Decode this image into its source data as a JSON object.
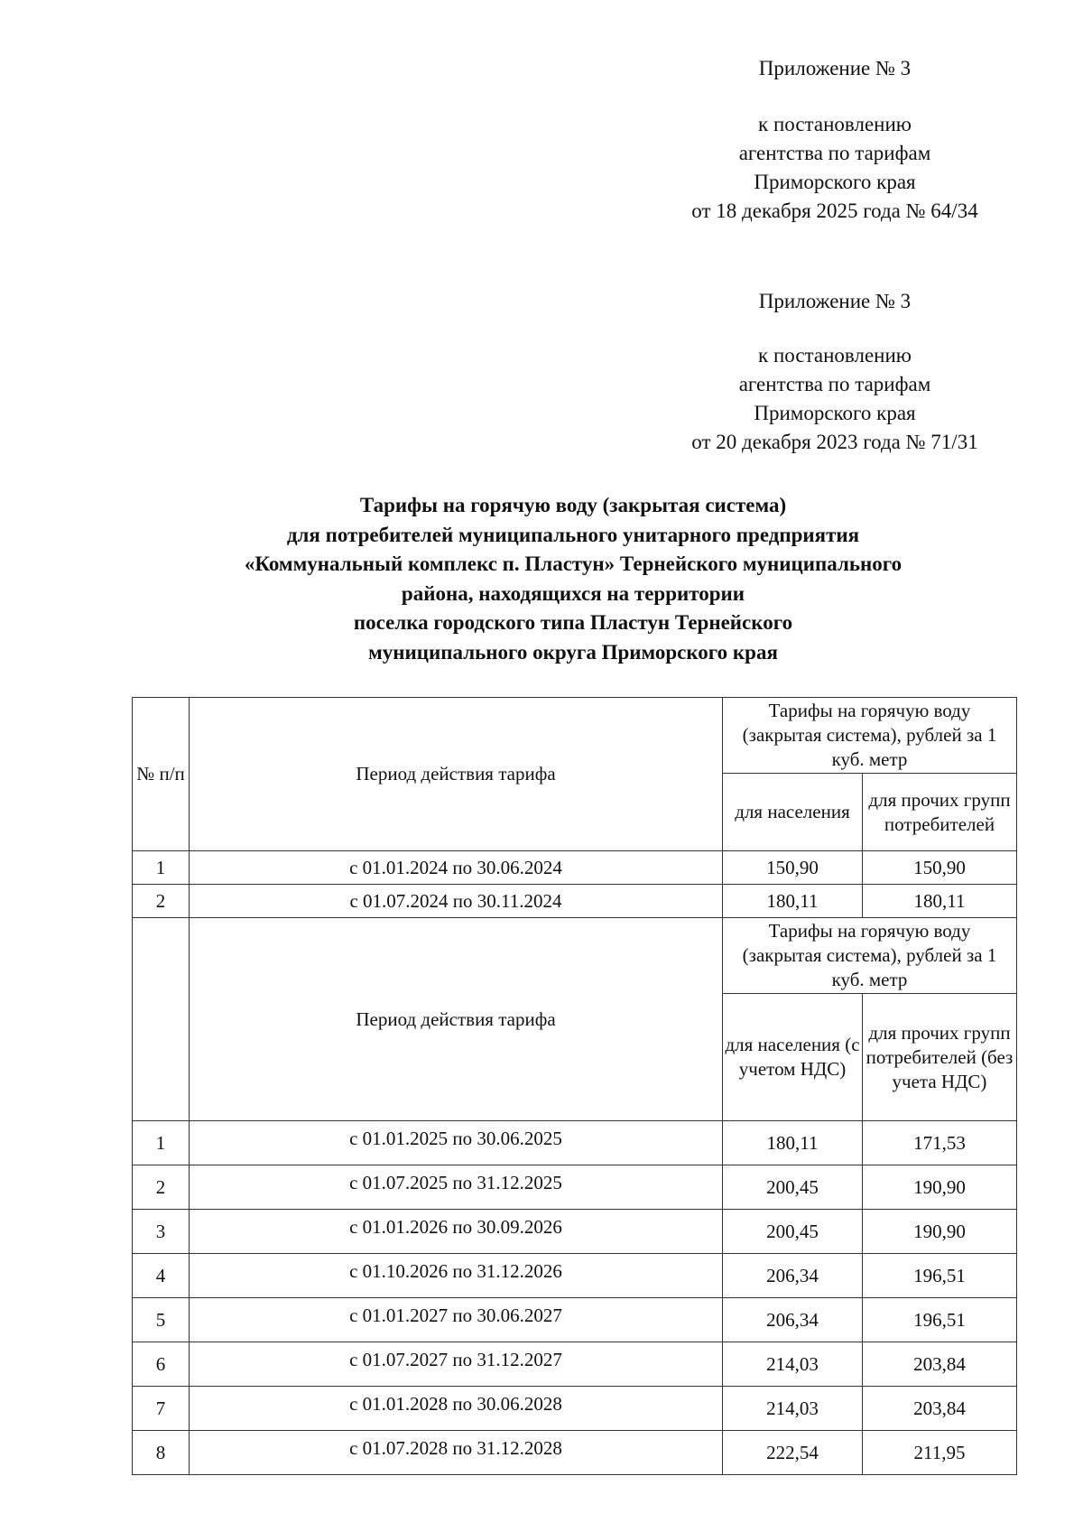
{
  "header_block_1": {
    "appendix": "Приложение № 3",
    "lines": [
      "к постановлению",
      "агентства по тарифам",
      "Приморского края",
      "от 18 декабря 2025 года № 64/34"
    ]
  },
  "header_block_2": {
    "appendix": "Приложение № 3",
    "lines": [
      "к постановлению",
      "агентства по тарифам",
      "Приморского края",
      "от 20 декабря 2023 года № 71/31"
    ]
  },
  "title_lines": [
    "Тарифы на горячую воду (закрытая система)",
    "для потребителей муниципального унитарного предприятия",
    "«Коммунальный комплекс п. Пластун» Тернейского муниципального",
    "района, находящихся на территории",
    "поселка городского типа Пластун Тернейского",
    "муниципального округа Приморского края"
  ],
  "table": {
    "header1": {
      "num": "№ п/п",
      "period": "Период действия тарифа",
      "tariff_group": "Тарифы на горячую воду (закрытая система), рублей за 1 куб. метр",
      "population": "для населения",
      "others": "для прочих групп потребителей"
    },
    "rows1": [
      {
        "num": "1",
        "period": "с 01.01.2024 по 30.06.2024",
        "population": "150,90",
        "others": "150,90"
      },
      {
        "num": "2",
        "period": "с 01.07.2024 по 30.11.2024",
        "population": "180,11",
        "others": "180,11"
      }
    ],
    "header2": {
      "period": "Период действия тарифа",
      "tariff_group": "Тарифы на горячую воду (закрытая система), рублей за 1 куб. метр",
      "population": "для населения (с учетом НДС)",
      "others": "для прочих групп потребителей (без учета НДС)"
    },
    "rows2": [
      {
        "num": "1",
        "period": "с 01.01.2025 по 30.06.2025",
        "population": "180,11",
        "others": "171,53"
      },
      {
        "num": "2",
        "period": "с 01.07.2025 по 31.12.2025",
        "population": "200,45",
        "others": "190,90"
      },
      {
        "num": "3",
        "period": "с 01.01.2026 по 30.09.2026",
        "population": "200,45",
        "others": "190,90"
      },
      {
        "num": "4",
        "period": "с 01.10.2026 по 31.12.2026",
        "population": "206,34",
        "others": "196,51"
      },
      {
        "num": "5",
        "period": "с 01.01.2027 по 30.06.2027",
        "population": "206,34",
        "others": "196,51"
      },
      {
        "num": "6",
        "period": "с 01.07.2027 по 31.12.2027",
        "population": "214,03",
        "others": "203,84"
      },
      {
        "num": "7",
        "period": "с 01.01.2028 по 30.06.2028",
        "population": "214,03",
        "others": "203,84"
      },
      {
        "num": "8",
        "period": "с 01.07.2028 по 31.12.2028",
        "population": "222,54",
        "others": "211,95"
      }
    ]
  }
}
